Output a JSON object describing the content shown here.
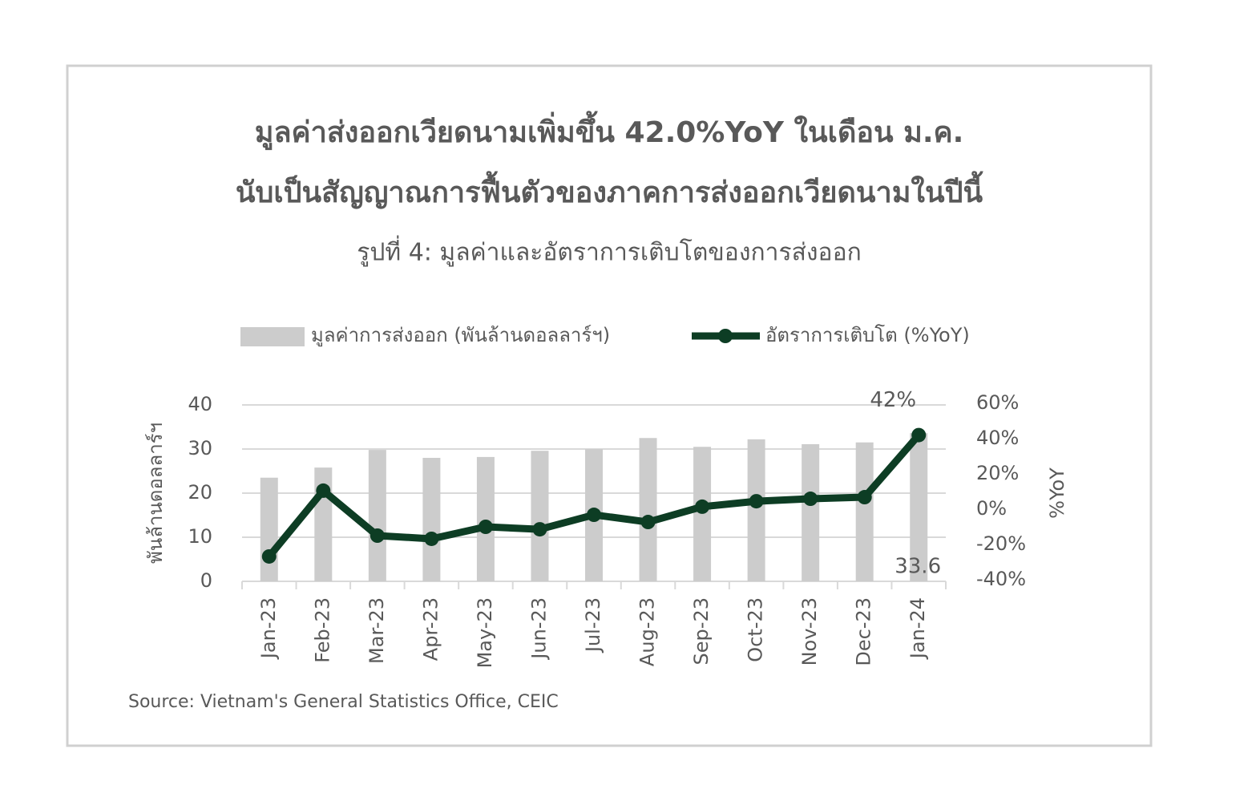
{
  "chart_data": {
    "type": "bar_line",
    "title": [
      "มูลค่าส่งออกเวียดนามเพิ่มขึ้น 42.0%YoY ในเดือน ม.ค.",
      "นับเป็นสัญญาณการฟื้นตัวของภาคการส่งออกเวียดนามในปีนี้"
    ],
    "subtitle": "รูปที่ 4: มูลค่าและอัตราการเติบโตของการส่งออก",
    "categories": [
      "Jan-23",
      "Feb-23",
      "Mar-23",
      "Apr-23",
      "May-23",
      "Jun-23",
      "Jul-23",
      "Aug-23",
      "Sep-23",
      "Oct-23",
      "Nov-23",
      "Dec-23",
      "Jan-24"
    ],
    "series": [
      {
        "name": "มูลค่าการส่งออก (พันล้านดอลลาร์ฯ)",
        "type": "bar",
        "color": "#cccccc",
        "values": [
          23.5,
          25.8,
          29.8,
          28.0,
          28.2,
          29.6,
          30.0,
          32.5,
          30.5,
          32.2,
          31.1,
          31.5,
          33.6
        ],
        "value_labels": [
          null,
          null,
          null,
          null,
          null,
          null,
          null,
          null,
          null,
          null,
          null,
          null,
          "33.6"
        ]
      },
      {
        "name": "อัตราการเติบโต (%YoY)",
        "type": "line",
        "axis": "y2",
        "color": "#0d3d24",
        "values": [
          -26.8,
          10.5,
          -15.0,
          -16.8,
          -10.0,
          -11.4,
          -3.2,
          -7.3,
          1.4,
          4.5,
          5.9,
          6.8,
          42
        ],
        "value_labels": [
          null,
          null,
          null,
          null,
          null,
          null,
          null,
          null,
          null,
          null,
          null,
          null,
          "42%"
        ]
      }
    ],
    "y_label": "พันล้านดอลลาร์ฯ",
    "y2_label": "%YoY",
    "ylim": [
      0,
      40
    ],
    "yticks": [
      0,
      10,
      20,
      30,
      40
    ],
    "y2lim": [
      -40,
      60
    ],
    "y2ticks": [
      {
        "value": -40,
        "label": "-40%"
      },
      {
        "value": -20,
        "label": "-20%"
      },
      {
        "value": 0,
        "label": "0%"
      },
      {
        "value": 20,
        "label": "20%"
      },
      {
        "value": 40,
        "label": "40%"
      },
      {
        "value": 60,
        "label": "60%"
      }
    ],
    "grid": true,
    "legend": "top",
    "source": "Source: Vietnam's General Statistics Office, CEIC"
  }
}
